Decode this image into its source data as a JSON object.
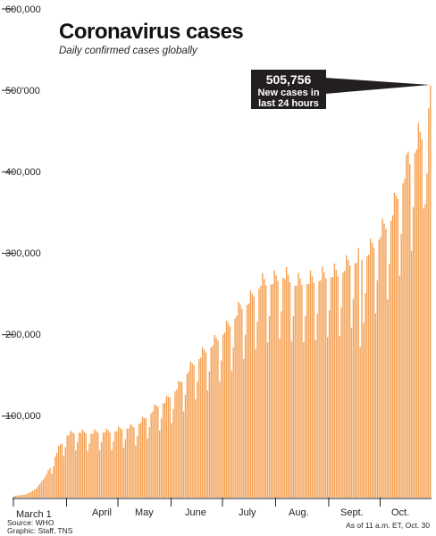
{
  "chart_data": {
    "type": "bar",
    "title": "Coronavirus cases",
    "subtitle": "Daily confirmed cases globally",
    "x_start": "March 1",
    "x_end": "Oct. 30",
    "month_labels": [
      "March 1",
      "April",
      "May",
      "June",
      "July",
      "Aug.",
      "Sept.",
      "Oct."
    ],
    "y_ticks": [
      100000,
      200000,
      300000,
      400000,
      500000,
      600000
    ],
    "y_tick_labels": [
      "100,000",
      "200,000",
      "300,000",
      "400,000",
      "500'000",
      "600,000"
    ],
    "ylim": [
      0,
      600000
    ],
    "grid": false,
    "bar_color": "#f4a053",
    "anchors": [
      [
        1,
        2000
      ],
      [
        8,
        3800
      ],
      [
        14,
        11000
      ],
      [
        19,
        25000
      ],
      [
        23,
        40000
      ],
      [
        27,
        60000
      ],
      [
        32,
        76000
      ],
      [
        38,
        80000
      ],
      [
        45,
        78000
      ],
      [
        52,
        80000
      ],
      [
        58,
        80000
      ],
      [
        65,
        84000
      ],
      [
        71,
        86000
      ],
      [
        77,
        95000
      ],
      [
        84,
        110000
      ],
      [
        90,
        118000
      ],
      [
        97,
        135000
      ],
      [
        103,
        155000
      ],
      [
        109,
        170000
      ],
      [
        115,
        182000
      ],
      [
        121,
        195000
      ],
      [
        127,
        210000
      ],
      [
        133,
        230000
      ],
      [
        139,
        240000
      ],
      [
        145,
        260000
      ],
      [
        152,
        262000
      ],
      [
        158,
        270000
      ],
      [
        165,
        260000
      ],
      [
        172,
        262000
      ],
      [
        178,
        265000
      ],
      [
        184,
        270000
      ],
      [
        191,
        272000
      ],
      [
        197,
        285000
      ],
      [
        203,
        290000
      ],
      [
        209,
        300000
      ],
      [
        215,
        320000
      ],
      [
        221,
        340000
      ],
      [
        227,
        380000
      ],
      [
        233,
        415000
      ],
      [
        239,
        440000
      ],
      [
        244,
        480000
      ]
    ],
    "days": [
      {
        "index": 203,
        "value": 185000
      },
      {
        "index": 231,
        "value": 425000
      },
      {
        "index": 237,
        "value": 460000
      },
      {
        "index": 240,
        "value": 355000
      },
      {
        "index": 241,
        "value": 360000
      },
      {
        "index": 242,
        "value": 398000
      },
      {
        "index": 243,
        "value": 478000
      },
      {
        "index": 244,
        "value": 505756
      }
    ],
    "weekly_dip": 0.27,
    "total_days": 244,
    "callout": {
      "value": "505,756",
      "line1": "New cases in",
      "line2": "last 24 hours"
    }
  },
  "footer": {
    "source": "Source: WHO",
    "graphic": "Graphic: Staff, TNS",
    "asof": "As of 11 a.m. ET, Oct. 30"
  }
}
